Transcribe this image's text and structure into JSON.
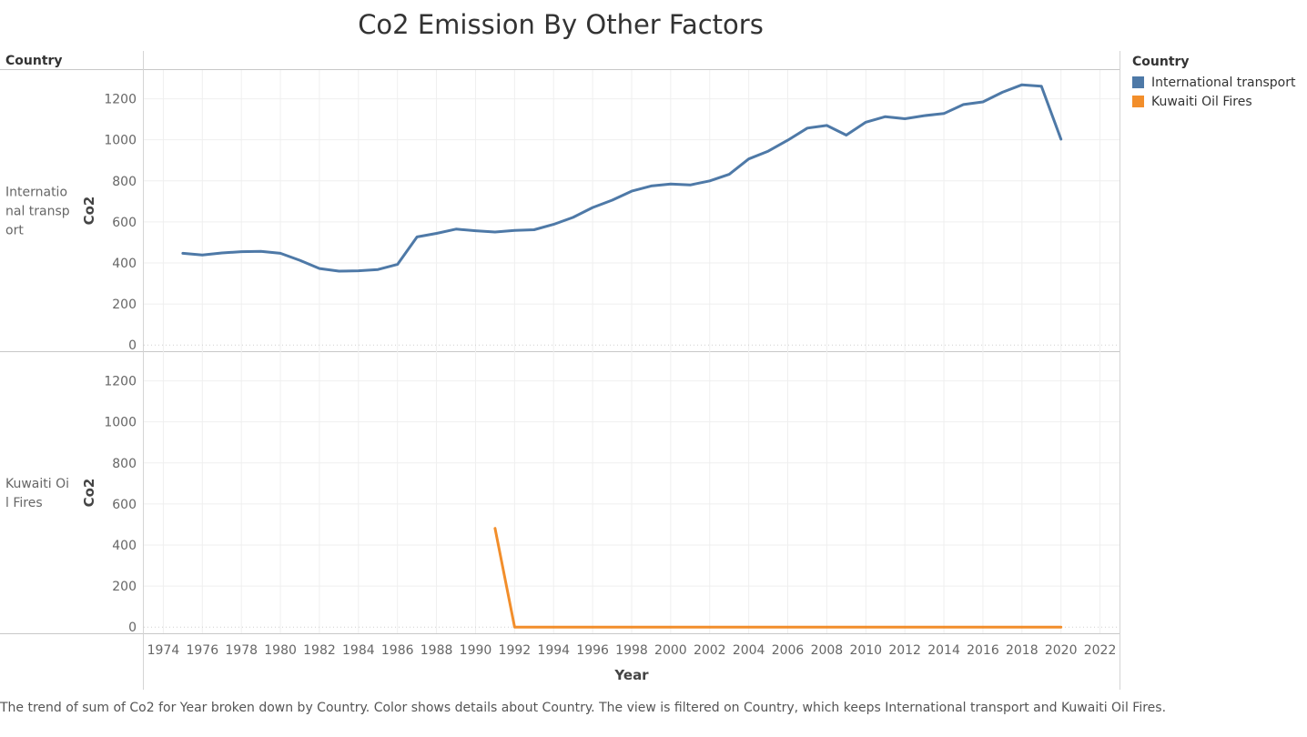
{
  "title": "Co2 Emission By Other Factors",
  "row_header": "Country",
  "footer": "The trend of sum of Co2 for Year broken down by Country.  Color shows details about Country. The view is filtered on Country, which keeps International transport and Kuwaiti Oil Fires.",
  "legend": {
    "title": "Country",
    "items": [
      {
        "label": "International transport",
        "color": "#4e79a7"
      },
      {
        "label": "Kuwaiti Oil Fires",
        "color": "#f28e2b"
      }
    ]
  },
  "chart_data": {
    "type": "line",
    "xlabel": "Year",
    "xlim": [
      1973,
      2023
    ],
    "x_ticks": [
      1974,
      1976,
      1978,
      1980,
      1982,
      1984,
      1986,
      1988,
      1990,
      1992,
      1994,
      1996,
      1998,
      2000,
      2002,
      2004,
      2006,
      2008,
      2010,
      2012,
      2014,
      2016,
      2018,
      2020,
      2022
    ],
    "grid": true,
    "panels": [
      {
        "row_label": "International transport",
        "ylabel": "Co2",
        "ylim": [
          -30,
          1340
        ],
        "y_ticks": [
          0,
          200,
          400,
          600,
          800,
          1000,
          1200
        ],
        "series": [
          {
            "name": "International transport",
            "color": "#4e79a7",
            "x": [
              1975,
              1976,
              1977,
              1978,
              1979,
              1980,
              1981,
              1982,
              1983,
              1984,
              1985,
              1986,
              1987,
              1988,
              1989,
              1990,
              1991,
              1992,
              1993,
              1994,
              1995,
              1996,
              1997,
              1998,
              1999,
              2000,
              2001,
              2002,
              2003,
              2004,
              2005,
              2006,
              2007,
              2008,
              2009,
              2010,
              2011,
              2012,
              2013,
              2014,
              2015,
              2016,
              2017,
              2018,
              2019,
              2020
            ],
            "y": [
              447,
              439,
              449,
              455,
              457,
              447,
              413,
              373,
              360,
              362,
              368,
              393,
              527,
              544,
              565,
              557,
              551,
              559,
              562,
              588,
              622,
              670,
              706,
              750,
              775,
              785,
              780,
              800,
              832,
              907,
              945,
              998,
              1057,
              1070,
              1023,
              1086,
              1113,
              1103,
              1118,
              1128,
              1172,
              1185,
              1232,
              1268,
              1261,
              1003
            ]
          }
        ]
      },
      {
        "row_label": "Kuwaiti Oil Fires",
        "ylabel": "Co2",
        "ylim": [
          -30,
          1340
        ],
        "y_ticks": [
          0,
          200,
          400,
          600,
          800,
          1000,
          1200
        ],
        "series": [
          {
            "name": "Kuwaiti Oil Fires",
            "color": "#f28e2b",
            "x": [
              1991,
              1992,
              1993,
              1994,
              1995,
              1996,
              1997,
              1998,
              1999,
              2000,
              2001,
              2002,
              2003,
              2004,
              2005,
              2006,
              2007,
              2008,
              2009,
              2010,
              2011,
              2012,
              2013,
              2014,
              2015,
              2016,
              2017,
              2018,
              2019,
              2020
            ],
            "y": [
              481,
              0,
              0,
              0,
              0,
              0,
              0,
              0,
              0,
              0,
              0,
              0,
              0,
              0,
              0,
              0,
              0,
              0,
              0,
              0,
              0,
              0,
              0,
              0,
              0,
              0,
              0,
              0,
              0,
              0
            ]
          }
        ]
      }
    ]
  }
}
